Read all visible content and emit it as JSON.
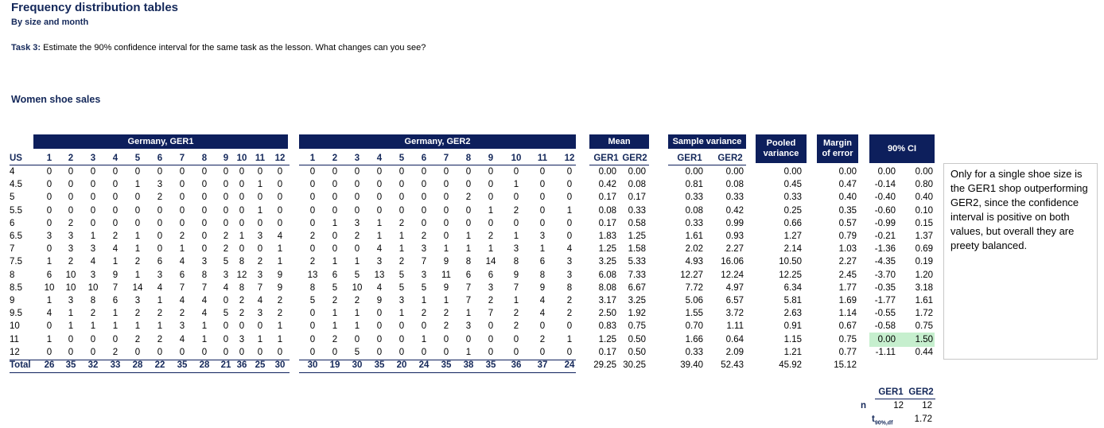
{
  "header": {
    "title": "Frequency distribution tables",
    "subtitle": "By size and month"
  },
  "task": {
    "label": "Task 3:",
    "text": " Estimate the 90% confidence interval for the same task as the lesson. What changes can you see?"
  },
  "section_title": "Women shoe sales",
  "table": {
    "group_headers": {
      "ger1": "Germany, GER1",
      "ger2": "Germany, GER2",
      "mean": "Mean",
      "variance": "Sample variance",
      "pooled": [
        "Pooled",
        "variance"
      ],
      "margin": [
        "Margin",
        "of error"
      ],
      "ci": "90% CI"
    },
    "sub_headers": {
      "size": "US",
      "ger1": [
        1,
        2,
        3,
        4,
        5,
        6,
        7,
        8,
        9,
        10,
        11,
        12
      ],
      "ger2": [
        1,
        2,
        3,
        4,
        5,
        6,
        7,
        8,
        9,
        10,
        11,
        12
      ],
      "mean": [
        "GER1",
        "GER2"
      ],
      "variance": [
        "GER1",
        "GER2"
      ]
    },
    "rows": [
      {
        "size": "4",
        "ger1": [
          0,
          0,
          0,
          0,
          0,
          0,
          0,
          0,
          0,
          0,
          0,
          0
        ],
        "ger2": [
          0,
          0,
          0,
          0,
          0,
          0,
          0,
          0,
          0,
          0,
          0,
          0
        ],
        "mean": [
          "0.00",
          "0.00"
        ],
        "variance": [
          "0.00",
          "0.00"
        ],
        "pooled": "0.00",
        "margin": "0.00",
        "ci": [
          "0.00",
          "0.00"
        ]
      },
      {
        "size": "4.5",
        "ger1": [
          0,
          0,
          0,
          0,
          1,
          3,
          0,
          0,
          0,
          0,
          1,
          0
        ],
        "ger2": [
          0,
          0,
          0,
          0,
          0,
          0,
          0,
          0,
          0,
          1,
          0,
          0
        ],
        "mean": [
          "0.42",
          "0.08"
        ],
        "variance": [
          "0.81",
          "0.08"
        ],
        "pooled": "0.45",
        "margin": "0.47",
        "ci": [
          "-0.14",
          "0.80"
        ]
      },
      {
        "size": "5",
        "ger1": [
          0,
          0,
          0,
          0,
          0,
          2,
          0,
          0,
          0,
          0,
          0,
          0
        ],
        "ger2": [
          0,
          0,
          0,
          0,
          0,
          0,
          0,
          2,
          0,
          0,
          0,
          0
        ],
        "mean": [
          "0.17",
          "0.17"
        ],
        "variance": [
          "0.33",
          "0.33"
        ],
        "pooled": "0.33",
        "margin": "0.40",
        "ci": [
          "-0.40",
          "0.40"
        ]
      },
      {
        "size": "5.5",
        "ger1": [
          0,
          0,
          0,
          0,
          0,
          0,
          0,
          0,
          0,
          0,
          1,
          0
        ],
        "ger2": [
          0,
          0,
          0,
          0,
          0,
          0,
          0,
          0,
          1,
          2,
          0,
          1
        ],
        "mean": [
          "0.08",
          "0.33"
        ],
        "variance": [
          "0.08",
          "0.42"
        ],
        "pooled": "0.25",
        "margin": "0.35",
        "ci": [
          "-0.60",
          "0.10"
        ]
      },
      {
        "size": "6",
        "ger1": [
          0,
          2,
          0,
          0,
          0,
          0,
          0,
          0,
          0,
          0,
          0,
          0
        ],
        "ger2": [
          0,
          1,
          3,
          1,
          2,
          0,
          0,
          0,
          0,
          0,
          0,
          0
        ],
        "mean": [
          "0.17",
          "0.58"
        ],
        "variance": [
          "0.33",
          "0.99"
        ],
        "pooled": "0.66",
        "margin": "0.57",
        "ci": [
          "-0.99",
          "0.15"
        ]
      },
      {
        "size": "6.5",
        "ger1": [
          3,
          3,
          1,
          2,
          1,
          0,
          2,
          0,
          2,
          1,
          3,
          4
        ],
        "ger2": [
          2,
          0,
          2,
          1,
          1,
          2,
          0,
          1,
          2,
          1,
          3,
          0
        ],
        "mean": [
          "1.83",
          "1.25"
        ],
        "variance": [
          "1.61",
          "0.93"
        ],
        "pooled": "1.27",
        "margin": "0.79",
        "ci": [
          "-0.21",
          "1.37"
        ]
      },
      {
        "size": "7",
        "ger1": [
          0,
          3,
          3,
          4,
          1,
          0,
          1,
          0,
          2,
          0,
          0,
          1
        ],
        "ger2": [
          0,
          0,
          0,
          4,
          1,
          3,
          1,
          1,
          1,
          3,
          1,
          4
        ],
        "mean": [
          "1.25",
          "1.58"
        ],
        "variance": [
          "2.02",
          "2.27"
        ],
        "pooled": "2.14",
        "margin": "1.03",
        "ci": [
          "-1.36",
          "0.69"
        ]
      },
      {
        "size": "7.5",
        "ger1": [
          1,
          2,
          4,
          1,
          2,
          6,
          4,
          3,
          5,
          8,
          2,
          1
        ],
        "ger2": [
          2,
          1,
          1,
          3,
          2,
          7,
          9,
          8,
          14,
          8,
          6,
          3
        ],
        "mean": [
          "3.25",
          "5.33"
        ],
        "variance": [
          "4.93",
          "16.06"
        ],
        "pooled": "10.50",
        "margin": "2.27",
        "ci": [
          "-4.35",
          "0.19"
        ]
      },
      {
        "size": "8",
        "ger1": [
          6,
          10,
          3,
          9,
          1,
          3,
          6,
          8,
          3,
          12,
          3,
          9
        ],
        "ger2": [
          13,
          6,
          5,
          13,
          5,
          3,
          11,
          6,
          6,
          9,
          8,
          3
        ],
        "mean": [
          "6.08",
          "7.33"
        ],
        "variance": [
          "12.27",
          "12.24"
        ],
        "pooled": "12.25",
        "margin": "2.45",
        "ci": [
          "-3.70",
          "1.20"
        ]
      },
      {
        "size": "8.5",
        "ger1": [
          10,
          10,
          10,
          7,
          14,
          4,
          7,
          7,
          4,
          8,
          7,
          9
        ],
        "ger2": [
          8,
          5,
          10,
          4,
          5,
          5,
          9,
          7,
          3,
          7,
          9,
          8
        ],
        "mean": [
          "8.08",
          "6.67"
        ],
        "variance": [
          "7.72",
          "4.97"
        ],
        "pooled": "6.34",
        "margin": "1.77",
        "ci": [
          "-0.35",
          "3.18"
        ]
      },
      {
        "size": "9",
        "ger1": [
          1,
          3,
          8,
          6,
          3,
          1,
          4,
          4,
          0,
          2,
          4,
          2
        ],
        "ger2": [
          5,
          2,
          2,
          9,
          3,
          1,
          1,
          7,
          2,
          1,
          4,
          2
        ],
        "mean": [
          "3.17",
          "3.25"
        ],
        "variance": [
          "5.06",
          "6.57"
        ],
        "pooled": "5.81",
        "margin": "1.69",
        "ci": [
          "-1.77",
          "1.61"
        ]
      },
      {
        "size": "9.5",
        "ger1": [
          4,
          1,
          2,
          1,
          2,
          2,
          2,
          4,
          5,
          2,
          3,
          2
        ],
        "ger2": [
          0,
          1,
          1,
          0,
          1,
          2,
          2,
          1,
          7,
          2,
          4,
          2
        ],
        "mean": [
          "2.50",
          "1.92"
        ],
        "variance": [
          "1.55",
          "3.72"
        ],
        "pooled": "2.63",
        "margin": "1.14",
        "ci": [
          "-0.55",
          "1.72"
        ]
      },
      {
        "size": "10",
        "ger1": [
          0,
          1,
          1,
          1,
          1,
          1,
          3,
          1,
          0,
          0,
          0,
          1
        ],
        "ger2": [
          0,
          1,
          1,
          0,
          0,
          0,
          2,
          3,
          0,
          2,
          0,
          0
        ],
        "mean": [
          "0.83",
          "0.75"
        ],
        "variance": [
          "0.70",
          "1.11"
        ],
        "pooled": "0.91",
        "margin": "0.67",
        "ci": [
          "-0.58",
          "0.75"
        ]
      },
      {
        "size": "11",
        "ger1": [
          1,
          0,
          0,
          0,
          2,
          2,
          4,
          1,
          0,
          3,
          1,
          1
        ],
        "ger2": [
          0,
          2,
          0,
          0,
          0,
          1,
          0,
          0,
          0,
          0,
          2,
          1
        ],
        "mean": [
          "1.25",
          "0.50"
        ],
        "variance": [
          "1.66",
          "0.64"
        ],
        "pooled": "1.15",
        "margin": "0.75",
        "ci": [
          "0.00",
          "1.50"
        ]
      },
      {
        "size": "12",
        "ger1": [
          0,
          0,
          0,
          2,
          0,
          0,
          0,
          0,
          0,
          0,
          0,
          0
        ],
        "ger2": [
          0,
          0,
          5,
          0,
          0,
          0,
          0,
          1,
          0,
          0,
          0,
          0
        ],
        "mean": [
          "0.17",
          "0.50"
        ],
        "variance": [
          "0.33",
          "2.09"
        ],
        "pooled": "1.21",
        "margin": "0.77",
        "ci": [
          "-1.11",
          "0.44"
        ]
      }
    ],
    "total": {
      "size": "Total",
      "ger1": [
        26,
        35,
        32,
        33,
        28,
        22,
        35,
        28,
        21,
        36,
        25,
        30
      ],
      "ger2": [
        30,
        19,
        30,
        35,
        20,
        24,
        35,
        38,
        35,
        36,
        37,
        24
      ],
      "mean": [
        "29.25",
        "30.25"
      ],
      "variance": [
        "39.40",
        "52.43"
      ],
      "pooled": "45.92",
      "margin": "15.12"
    }
  },
  "note": "Only for a single shoe size is the GER1 shop outperforming GER2, since the confidence interval is positive on both values, but overall they are preety balanced.",
  "summary": {
    "headers": [
      "GER1",
      "GER2"
    ],
    "n_label": "n",
    "n": [
      "12",
      "12"
    ],
    "t_label": {
      "main": "t",
      "sub": "90%,df"
    },
    "t_value": "1.72"
  }
}
